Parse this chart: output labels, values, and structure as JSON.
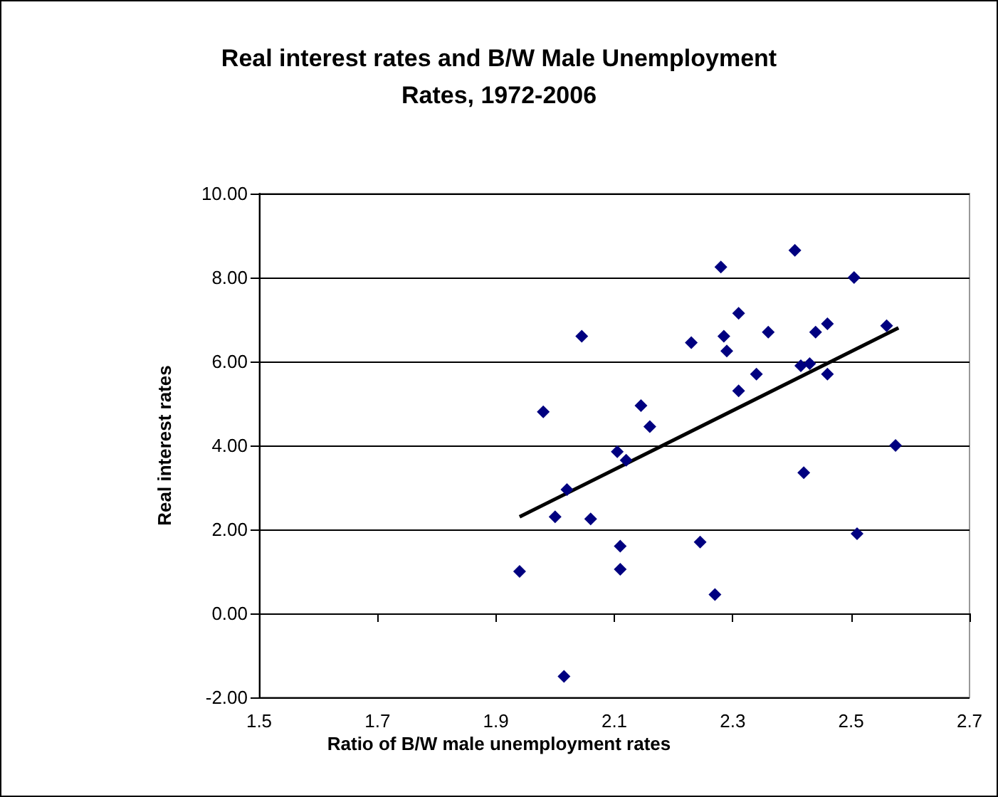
{
  "chart_data": {
    "type": "scatter",
    "title": "Real interest rates and B/W Male Unemployment\nRates, 1972-2006",
    "xlabel": "Ratio of B/W male unemployment rates",
    "ylabel": "Real interest rates",
    "xlim": [
      1.5,
      2.7
    ],
    "xticks": [
      1.5,
      1.7,
      1.9,
      2.1,
      2.3,
      2.5,
      2.7
    ],
    "ylim": [
      -2,
      10
    ],
    "yticks": [
      {
        "value": -2,
        "label": "-2.00"
      },
      {
        "value": 0,
        "label": "0.00"
      },
      {
        "value": 2,
        "label": "2.00"
      },
      {
        "value": 4,
        "label": "4.00"
      },
      {
        "value": 6,
        "label": "6.00"
      },
      {
        "value": 8,
        "label": "8.00"
      },
      {
        "value": 10,
        "label": "10.00"
      }
    ],
    "grid": "y",
    "series": [
      {
        "marker": "diamond",
        "color": "#000080",
        "x": [
          1.94,
          1.98,
          2.0,
          2.02,
          2.015,
          2.045,
          2.06,
          2.105,
          2.11,
          2.11,
          2.12,
          2.145,
          2.16,
          2.23,
          2.245,
          2.27,
          2.28,
          2.285,
          2.29,
          2.31,
          2.31,
          2.34,
          2.36,
          2.405,
          2.415,
          2.42,
          2.43,
          2.44,
          2.46,
          2.46,
          2.505,
          2.51,
          2.56,
          2.575
        ],
        "values": [
          1.0,
          4.8,
          2.3,
          2.95,
          -1.5,
          6.6,
          2.25,
          3.85,
          1.05,
          1.6,
          3.65,
          4.95,
          4.45,
          6.45,
          1.7,
          0.45,
          8.25,
          6.6,
          6.25,
          5.3,
          7.15,
          5.7,
          6.7,
          8.65,
          5.9,
          3.35,
          5.95,
          6.7,
          6.9,
          5.7,
          8.0,
          1.9,
          6.85,
          4.0
        ]
      },
      {
        "type": "line",
        "marker": "none",
        "line_style": "solid",
        "color": "#000000",
        "x": [
          1.94,
          2.58
        ],
        "values": [
          2.3,
          6.8
        ]
      }
    ]
  }
}
